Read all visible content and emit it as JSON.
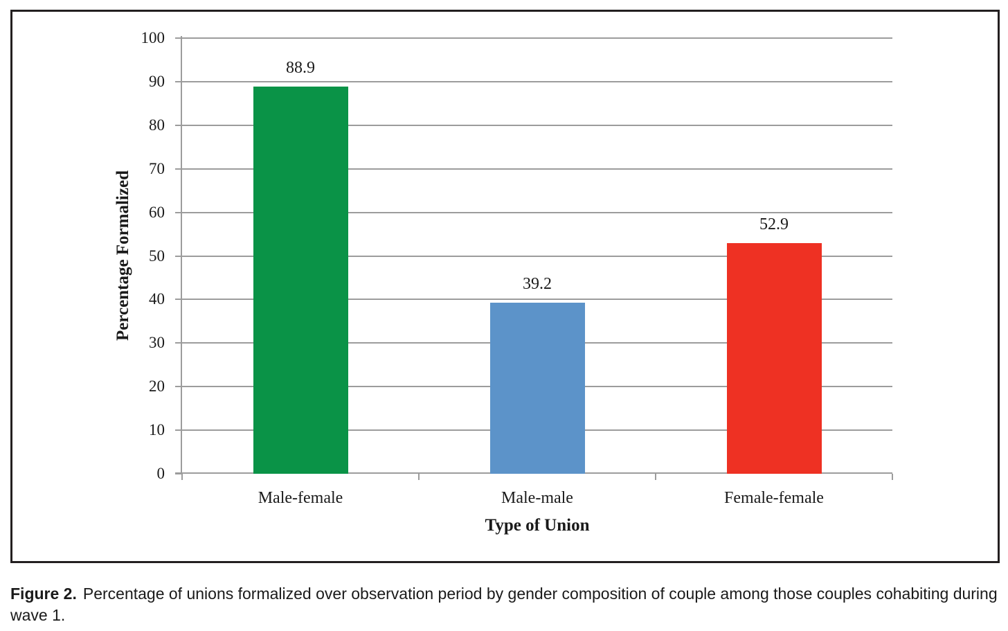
{
  "figure": {
    "caption_label": "Figure 2.",
    "caption_text": "Percentage of unions formalized over observation period by gender composition of couple among those couples cohabiting during wave 1."
  },
  "chart_data": {
    "type": "bar",
    "title": "",
    "categories": [
      "Male-female",
      "Male-male",
      "Female-female"
    ],
    "values": [
      88.9,
      39.2,
      52.9
    ],
    "data_labels": [
      "88.9",
      "39.2",
      "52.9"
    ],
    "bar_colors": [
      "#0a9347",
      "#5c93c9",
      "#ee3123"
    ],
    "xlabel": "Type of Union",
    "ylabel": "Percentage Formalized",
    "ylim": [
      0,
      100
    ],
    "ytick_step": 10,
    "ytick_labels": [
      "0",
      "10",
      "20",
      "30",
      "40",
      "50",
      "60",
      "70",
      "80",
      "90",
      "100"
    ],
    "grid": true,
    "legend": false,
    "colors": {
      "gridline": "#9c9c9c",
      "axis": "#9c9c9c",
      "text": "#1a1a1a",
      "frame_border": "#231f20",
      "background": "#ffffff"
    }
  }
}
